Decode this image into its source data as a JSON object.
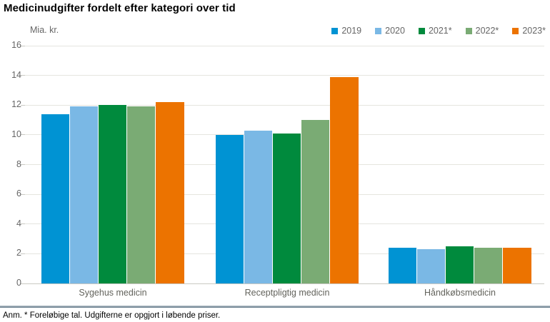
{
  "title": "Medicinudgifter fordelt efter kategori over tid",
  "note": "Anm. * Foreløbige tal. Udgifterne er opgjort i løbende priser.",
  "chart_data": {
    "type": "bar",
    "title": "Medicinudgifter fordelt efter kategori over tid",
    "unit_label": "Mia. kr.",
    "xlabel": "",
    "ylabel": "Mia. kr.",
    "categories": [
      "Sygehus medicin",
      "Receptpligtig medicin",
      "Håndkøbsmedicin"
    ],
    "series": [
      {
        "name": "2019",
        "color": "#0093d3",
        "values": [
          11.4,
          10.0,
          2.4
        ]
      },
      {
        "name": "2020",
        "color": "#7ab8e5",
        "values": [
          11.9,
          10.3,
          2.3
        ]
      },
      {
        "name": "2021*",
        "color": "#008a3d",
        "values": [
          12.0,
          10.1,
          2.5
        ]
      },
      {
        "name": "2022*",
        "color": "#7aab74",
        "values": [
          11.9,
          11.0,
          2.4
        ]
      },
      {
        "name": "2023*",
        "color": "#ec7300",
        "values": [
          12.2,
          13.9,
          2.4
        ]
      }
    ],
    "ylim": [
      0,
      16
    ],
    "ytick_step": 2,
    "grid": true,
    "legend_position": "top-right"
  },
  "colors": {
    "grid": "#e5e5df",
    "axis": "#c9c9c3",
    "muted_text": "#666666",
    "category_text": "#63635c",
    "divider_top": "#bcc6cc",
    "divider_bottom": "#5c7384"
  }
}
